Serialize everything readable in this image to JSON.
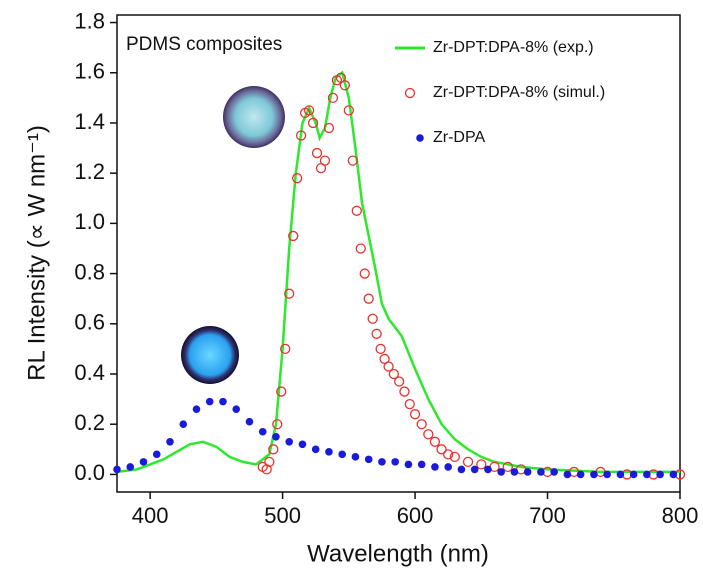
{
  "chart_data": {
    "type": "mixed",
    "xlabel": "Wavelength (nm)",
    "ylabel": "RL Intensity (∝ W nm⁻¹)",
    "annotation": "PDMS composites",
    "xlim": [
      375,
      800
    ],
    "xticks": [
      400,
      500,
      600,
      700,
      800
    ],
    "ylim": [
      -0.07,
      1.83
    ],
    "yticks": [
      {
        "value": 0,
        "label": "0.0"
      },
      0.2,
      0.4,
      0.6,
      0.8,
      {
        "value": 1,
        "label": "1.0"
      },
      1.2,
      1.4,
      1.6,
      1.8
    ],
    "legend": "upper right",
    "series": [
      {
        "name": "Zr-DPT:DPA-8% (exp.)",
        "color": "#2ee82e",
        "style": "line",
        "x": [
          375,
          390,
          400,
          410,
          420,
          430,
          440,
          450,
          460,
          470,
          480,
          490,
          495,
          500,
          505,
          510,
          515,
          520,
          525,
          528,
          532,
          536,
          540,
          545,
          550,
          555,
          560,
          565,
          570,
          575,
          580,
          590,
          600,
          610,
          620,
          630,
          640,
          650,
          660,
          680,
          700,
          740,
          800
        ],
        "values": [
          0.01,
          0.02,
          0.04,
          0.06,
          0.09,
          0.12,
          0.13,
          0.11,
          0.07,
          0.05,
          0.04,
          0.08,
          0.2,
          0.5,
          0.9,
          1.2,
          1.4,
          1.46,
          1.4,
          1.34,
          1.38,
          1.5,
          1.58,
          1.6,
          1.5,
          1.3,
          1.08,
          0.95,
          0.82,
          0.68,
          0.62,
          0.55,
          0.42,
          0.3,
          0.2,
          0.14,
          0.1,
          0.07,
          0.05,
          0.03,
          0.02,
          0.01,
          0.01
        ]
      },
      {
        "name": "Zr-DPT:DPA-8% (simul.)",
        "color": "#e8322e",
        "style": "open-circle",
        "x": [
          485,
          488,
          490,
          493,
          496,
          499,
          502,
          505,
          508,
          511,
          514,
          517,
          520,
          523,
          526,
          529,
          532,
          535,
          538,
          541,
          544,
          547,
          550,
          553,
          556,
          559,
          562,
          565,
          568,
          571,
          574,
          577,
          580,
          584,
          588,
          592,
          596,
          600,
          605,
          610,
          615,
          620,
          625,
          630,
          640,
          650,
          660,
          670,
          680,
          700,
          720,
          740,
          760,
          780,
          800
        ],
        "values": [
          0.03,
          0.02,
          0.05,
          0.1,
          0.2,
          0.33,
          0.5,
          0.72,
          0.95,
          1.18,
          1.35,
          1.44,
          1.45,
          1.4,
          1.28,
          1.22,
          1.25,
          1.38,
          1.5,
          1.57,
          1.58,
          1.55,
          1.45,
          1.25,
          1.05,
          0.9,
          0.8,
          0.7,
          0.62,
          0.56,
          0.5,
          0.46,
          0.43,
          0.4,
          0.37,
          0.33,
          0.28,
          0.24,
          0.2,
          0.16,
          0.13,
          0.1,
          0.08,
          0.07,
          0.05,
          0.04,
          0.03,
          0.03,
          0.02,
          0.01,
          0.01,
          0.01,
          0,
          0,
          0
        ]
      },
      {
        "name": "Zr-DPA",
        "color": "#1a1adb",
        "style": "dot",
        "x": [
          375,
          385,
          395,
          405,
          415,
          425,
          435,
          445,
          455,
          465,
          475,
          485,
          495,
          505,
          515,
          525,
          535,
          545,
          555,
          565,
          575,
          585,
          595,
          605,
          615,
          625,
          635,
          645,
          655,
          665,
          675,
          685,
          695,
          705,
          715,
          725,
          735,
          745,
          755,
          765,
          775,
          785,
          795
        ],
        "values": [
          0.02,
          0.03,
          0.05,
          0.08,
          0.13,
          0.2,
          0.26,
          0.29,
          0.29,
          0.26,
          0.21,
          0.17,
          0.15,
          0.13,
          0.12,
          0.1,
          0.09,
          0.08,
          0.07,
          0.06,
          0.05,
          0.05,
          0.04,
          0.04,
          0.03,
          0.03,
          0.02,
          0.02,
          0.02,
          0.01,
          0.01,
          0.01,
          0.01,
          0.01,
          0,
          0,
          0,
          0,
          0,
          0,
          0,
          0,
          0
        ]
      }
    ]
  }
}
